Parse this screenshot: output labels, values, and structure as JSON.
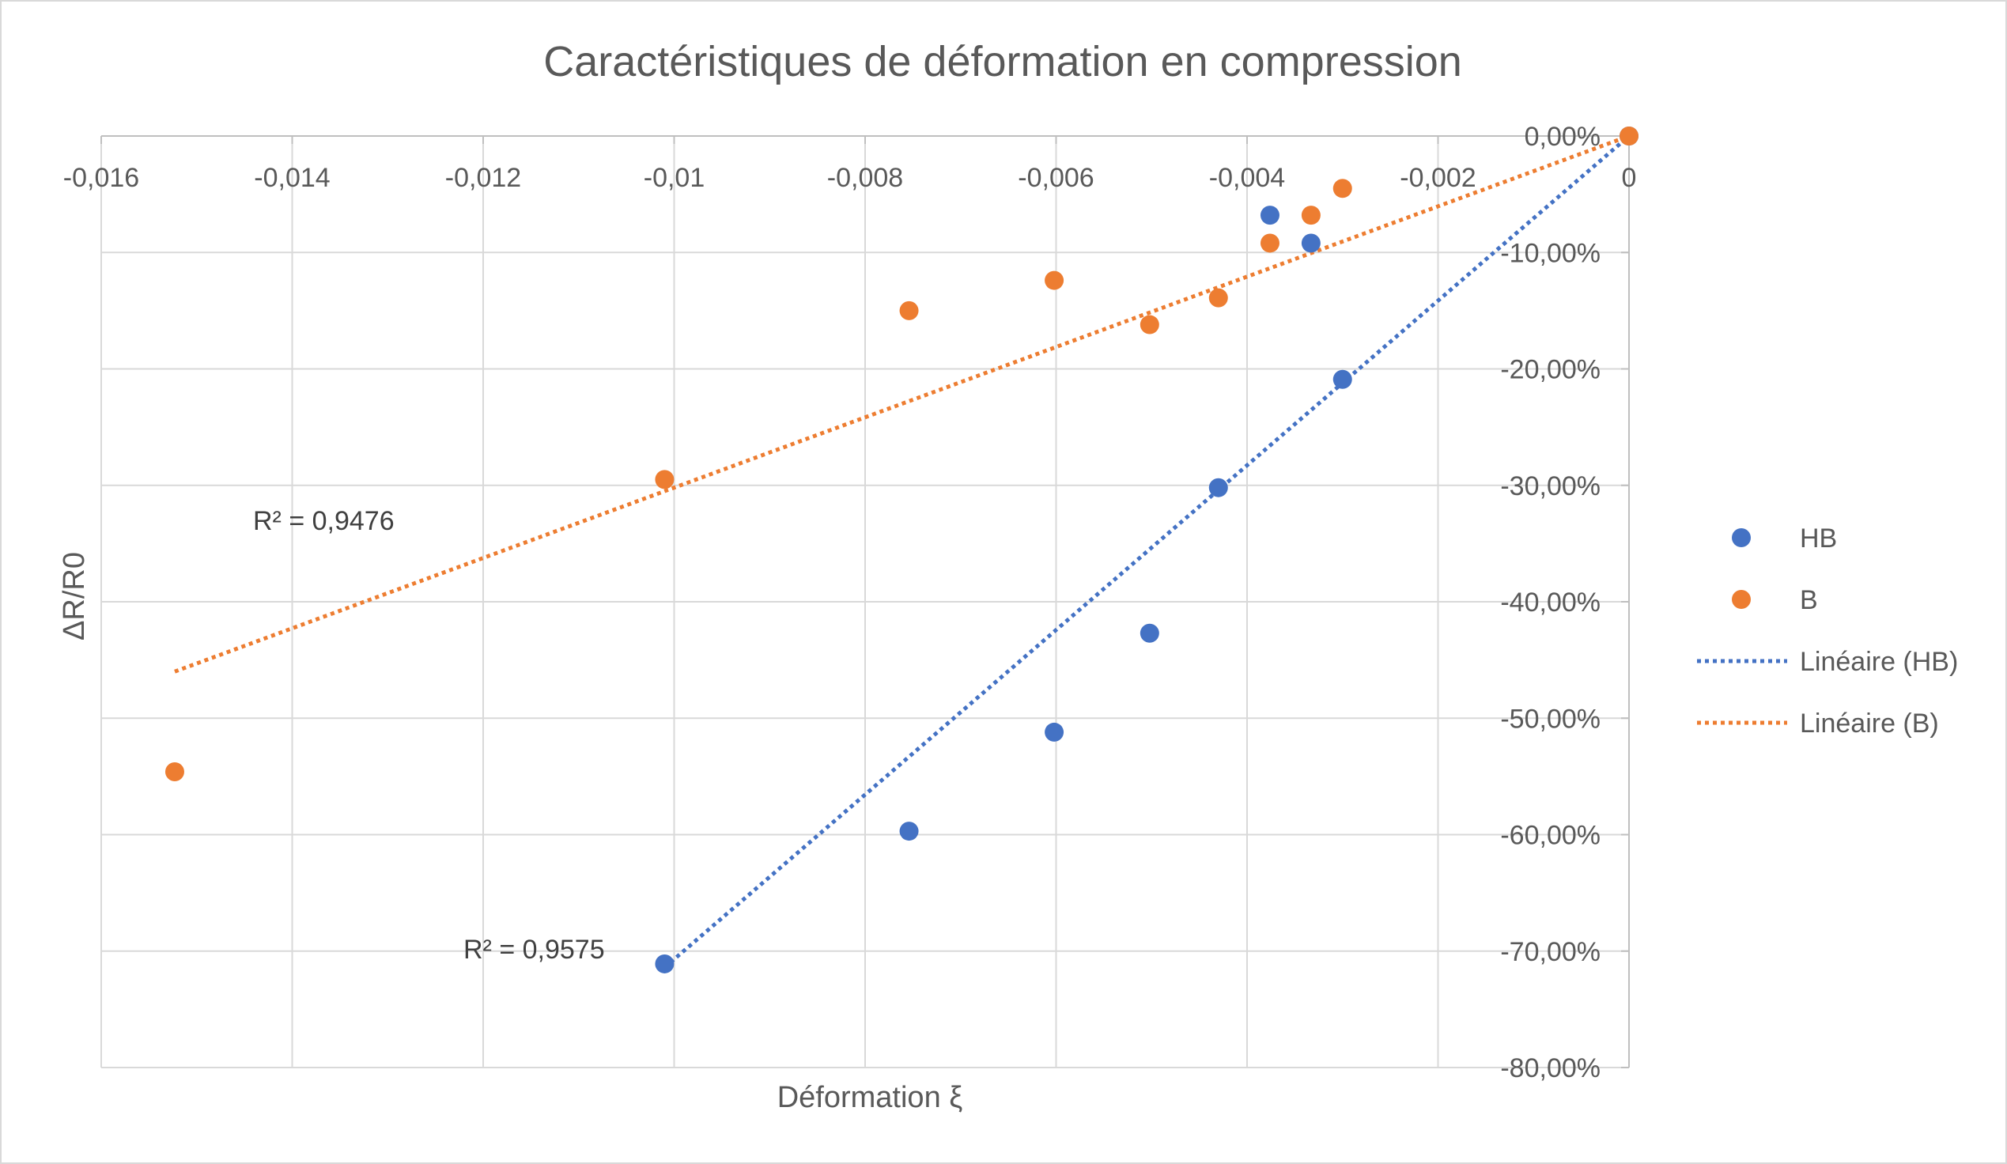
{
  "chart_data": {
    "type": "scatter",
    "title": "Caractéristiques de déformation en compression",
    "xlabel": "Déformation ξ",
    "ylabel": "ΔR/R0",
    "xlim": [
      -0.016,
      0
    ],
    "ylim": [
      -0.8,
      0
    ],
    "x_ticks": [
      -0.016,
      -0.014,
      -0.012,
      -0.01,
      -0.008,
      -0.006,
      -0.004,
      -0.002,
      0
    ],
    "x_tick_labels": [
      "-0,016",
      "-0,014",
      "-0,012",
      "-0,01",
      "-0,008",
      "-0,006",
      "-0,004",
      "-0,002",
      "0"
    ],
    "y_ticks": [
      0,
      -0.1,
      -0.2,
      -0.3,
      -0.4,
      -0.5,
      -0.6,
      -0.7,
      -0.8
    ],
    "y_tick_labels": [
      "0,00%",
      "-10,00%",
      "-20,00%",
      "-30,00%",
      "-40,00%",
      "-50,00%",
      "-60,00%",
      "-70,00%",
      "-80,00%"
    ],
    "grid": true,
    "legend_position": "right",
    "series": [
      {
        "name": "HB",
        "color": "#4472c4",
        "points": [
          [
            0,
            0
          ],
          [
            -0.003,
            -0.209
          ],
          [
            -0.00333,
            -0.092
          ],
          [
            -0.00376,
            -0.068
          ],
          [
            -0.0043,
            -0.302
          ],
          [
            -0.00502,
            -0.427
          ],
          [
            -0.00602,
            -0.512
          ],
          [
            -0.00754,
            -0.597
          ],
          [
            -0.0101,
            -0.711
          ]
        ]
      },
      {
        "name": "B",
        "color": "#ed7d31",
        "points": [
          [
            0,
            0
          ],
          [
            -0.003,
            -0.045
          ],
          [
            -0.00333,
            -0.068
          ],
          [
            -0.00376,
            -0.092
          ],
          [
            -0.0043,
            -0.139
          ],
          [
            -0.00502,
            -0.162
          ],
          [
            -0.00602,
            -0.124
          ],
          [
            -0.00754,
            -0.15
          ],
          [
            -0.0101,
            -0.295
          ],
          [
            -0.01523,
            -0.546
          ]
        ]
      }
    ],
    "trendlines": [
      {
        "name": "Linéaire (HB)",
        "color": "#4472c4",
        "style": "dotted",
        "x_range": [
          -0.0101,
          0
        ],
        "slope": 70.7,
        "intercept": 0,
        "r2_label": "R² = 0,9575"
      },
      {
        "name": "Linéaire (B)",
        "color": "#ed7d31",
        "style": "dotted",
        "x_range": [
          -0.01523,
          0
        ],
        "slope": 30.2,
        "intercept": 0,
        "r2_label": "R² = 0,9476"
      }
    ]
  }
}
